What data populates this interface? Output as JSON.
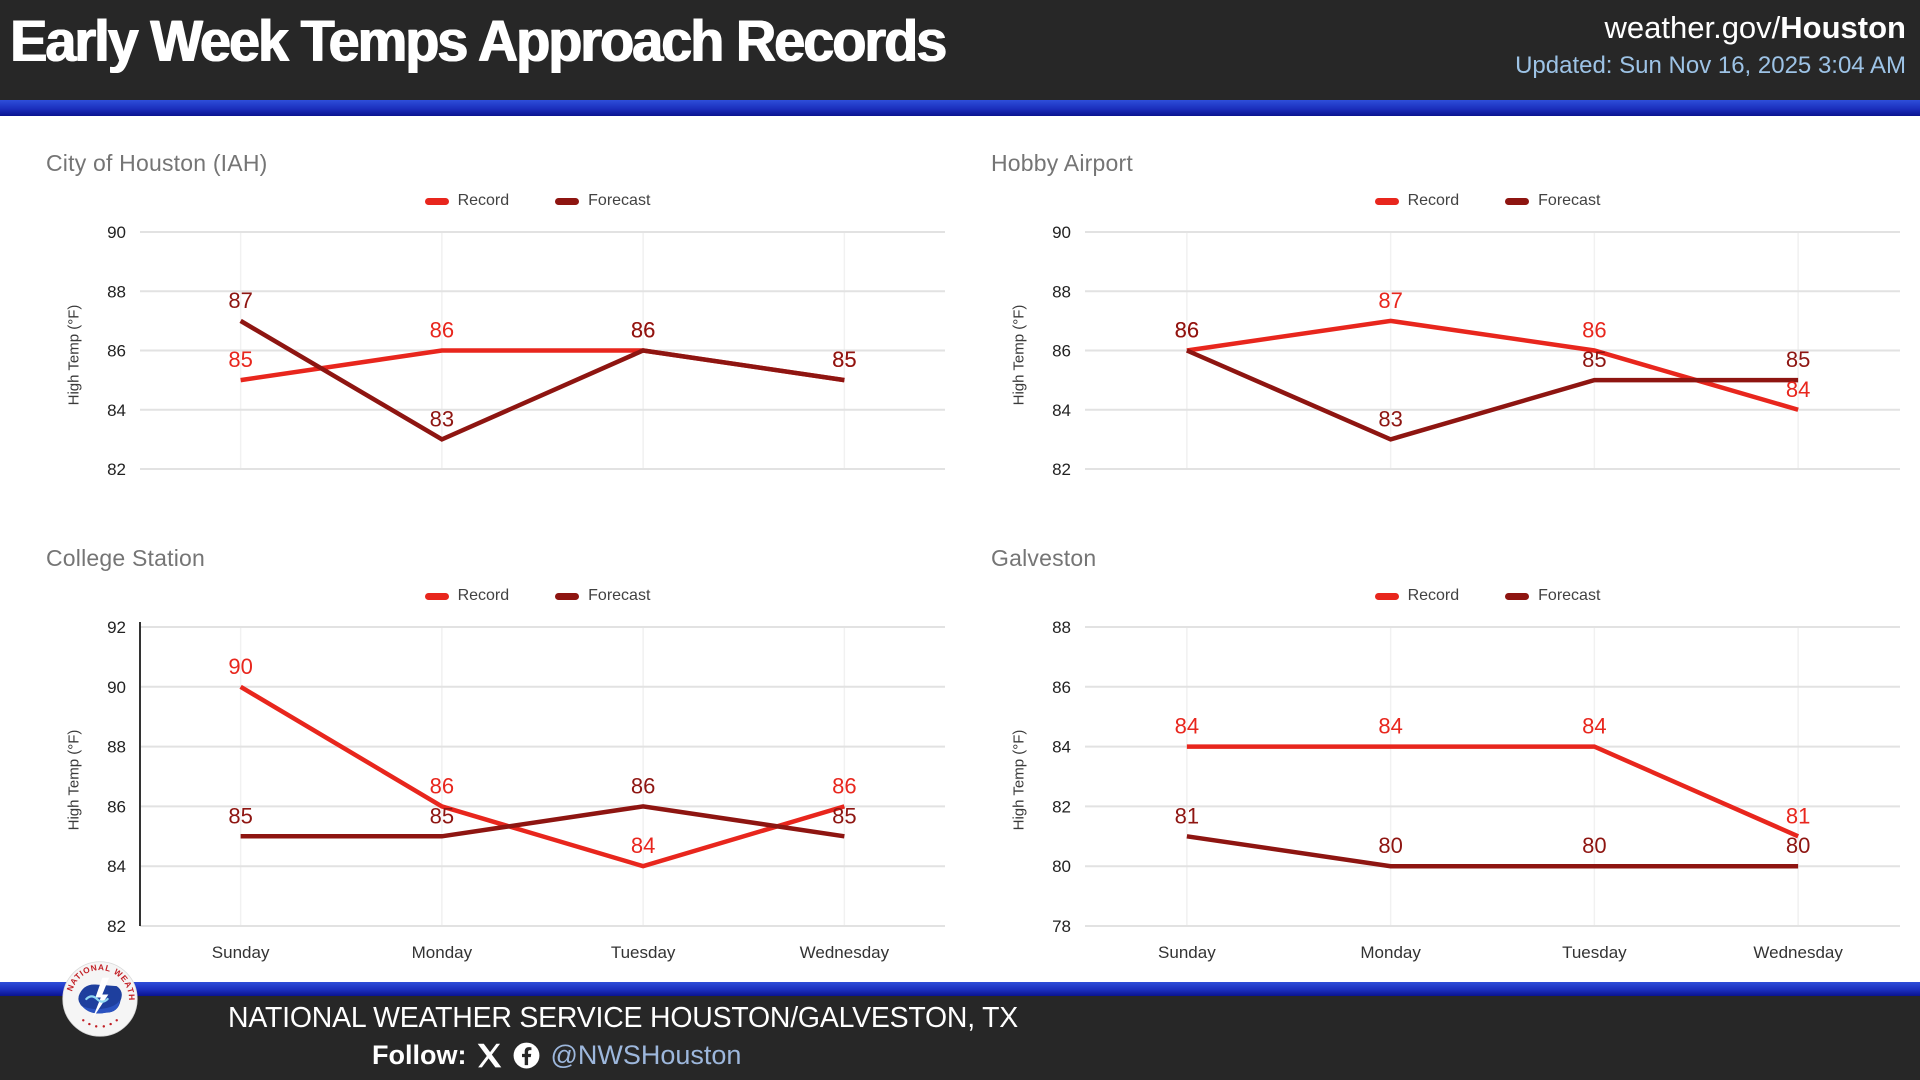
{
  "header": {
    "title": "Early Week Temps Approach Records",
    "site_prefix": "weather.gov/",
    "site_bold": "Houston",
    "updated": "Updated: Sun Nov 16, 2025 3:04 AM"
  },
  "footer": {
    "org": "NATIONAL WEATHER SERVICE HOUSTON/GALVESTON, TX",
    "follow_label": "Follow:",
    "handle": "@NWSHouston",
    "icons": [
      "x-twitter-icon",
      "facebook-icon",
      "nws-logo"
    ]
  },
  "colors": {
    "record": "#e8261d",
    "forecast": "#8e1511",
    "header_bg": "#272727",
    "stripe_blue_top": "#2e4ed9",
    "stripe_blue_bottom": "#0a1390",
    "updated_text": "#9dc3e6",
    "handle_text": "#9db7dc",
    "chart_title": "#757575",
    "gridline": "#e2e2e2"
  },
  "chart_data": [
    {
      "type": "line",
      "title": "City of Houston (IAH)",
      "ylabel": "High Temp (°F)",
      "categories": [
        "Sunday",
        "Monday",
        "Tuesday",
        "Wednesday"
      ],
      "show_x_labels": false,
      "show_y_axis_line": false,
      "yticks": [
        82,
        84,
        86,
        88,
        90
      ],
      "ylim": [
        82,
        90
      ],
      "legend_position": "top-center",
      "grid": true,
      "series": [
        {
          "name": "Record",
          "color_key": "record",
          "values": [
            85,
            86,
            86,
            85
          ]
        },
        {
          "name": "Forecast",
          "color_key": "forecast",
          "values": [
            87,
            83,
            86,
            85
          ]
        }
      ]
    },
    {
      "type": "line",
      "title": "Hobby Airport",
      "ylabel": "High Temp (°F)",
      "categories": [
        "Sunday",
        "Monday",
        "Tuesday",
        "Wednesday"
      ],
      "show_x_labels": false,
      "show_y_axis_line": false,
      "yticks": [
        82,
        84,
        86,
        88,
        90
      ],
      "ylim": [
        82,
        90
      ],
      "legend_position": "top-center",
      "grid": true,
      "series": [
        {
          "name": "Record",
          "color_key": "record",
          "values": [
            86,
            87,
            86,
            84
          ]
        },
        {
          "name": "Forecast",
          "color_key": "forecast",
          "values": [
            86,
            83,
            85,
            85
          ]
        }
      ]
    },
    {
      "type": "line",
      "title": "College Station",
      "ylabel": "High Temp (°F)",
      "categories": [
        "Sunday",
        "Monday",
        "Tuesday",
        "Wednesday"
      ],
      "show_x_labels": true,
      "show_y_axis_line": true,
      "yticks": [
        82,
        84,
        86,
        88,
        90,
        92
      ],
      "ylim": [
        82,
        92
      ],
      "legend_position": "top-center",
      "grid": true,
      "series": [
        {
          "name": "Record",
          "color_key": "record",
          "values": [
            90,
            86,
            84,
            86
          ]
        },
        {
          "name": "Forecast",
          "color_key": "forecast",
          "values": [
            85,
            85,
            86,
            85
          ]
        }
      ]
    },
    {
      "type": "line",
      "title": "Galveston",
      "ylabel": "High Temp (°F)",
      "categories": [
        "Sunday",
        "Monday",
        "Tuesday",
        "Wednesday"
      ],
      "show_x_labels": true,
      "show_y_axis_line": false,
      "yticks": [
        78,
        80,
        82,
        84,
        86,
        88
      ],
      "ylim": [
        78,
        88
      ],
      "legend_position": "top-center",
      "grid": true,
      "series": [
        {
          "name": "Record",
          "color_key": "record",
          "values": [
            84,
            84,
            84,
            81
          ]
        },
        {
          "name": "Forecast",
          "color_key": "forecast",
          "values": [
            81,
            80,
            80,
            80
          ]
        }
      ]
    }
  ]
}
